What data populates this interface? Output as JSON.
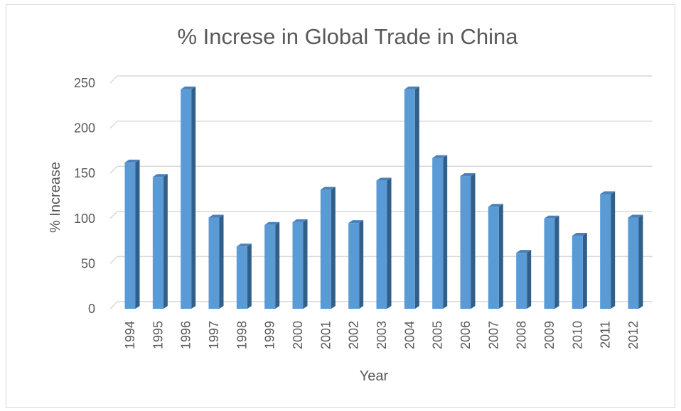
{
  "chart_data": {
    "type": "bar",
    "title": "% Increse in Global Trade in China",
    "xlabel": "Year",
    "ylabel": "% Increase",
    "categories": [
      "1994",
      "1995",
      "1996",
      "1997",
      "1998",
      "1999",
      "2000",
      "2001",
      "2002",
      "2003",
      "2004",
      "2005",
      "2006",
      "2007",
      "2008",
      "2009",
      "2010",
      "2011",
      "2012"
    ],
    "values": [
      162,
      146,
      243,
      101,
      69,
      93,
      96,
      132,
      95,
      142,
      243,
      167,
      147,
      113,
      62,
      100,
      81,
      127,
      101
    ],
    "yticks": [
      "0",
      "50",
      "100",
      "150",
      "200",
      "250"
    ],
    "ylim": [
      0,
      250
    ],
    "grid": true,
    "legend": "none",
    "colors": {
      "bar_front": "#5b9bd5",
      "bar_side": "#2f5f8a",
      "bar_top": "#4a82b8",
      "grid": "#d9d9d9",
      "text": "#595959"
    }
  }
}
